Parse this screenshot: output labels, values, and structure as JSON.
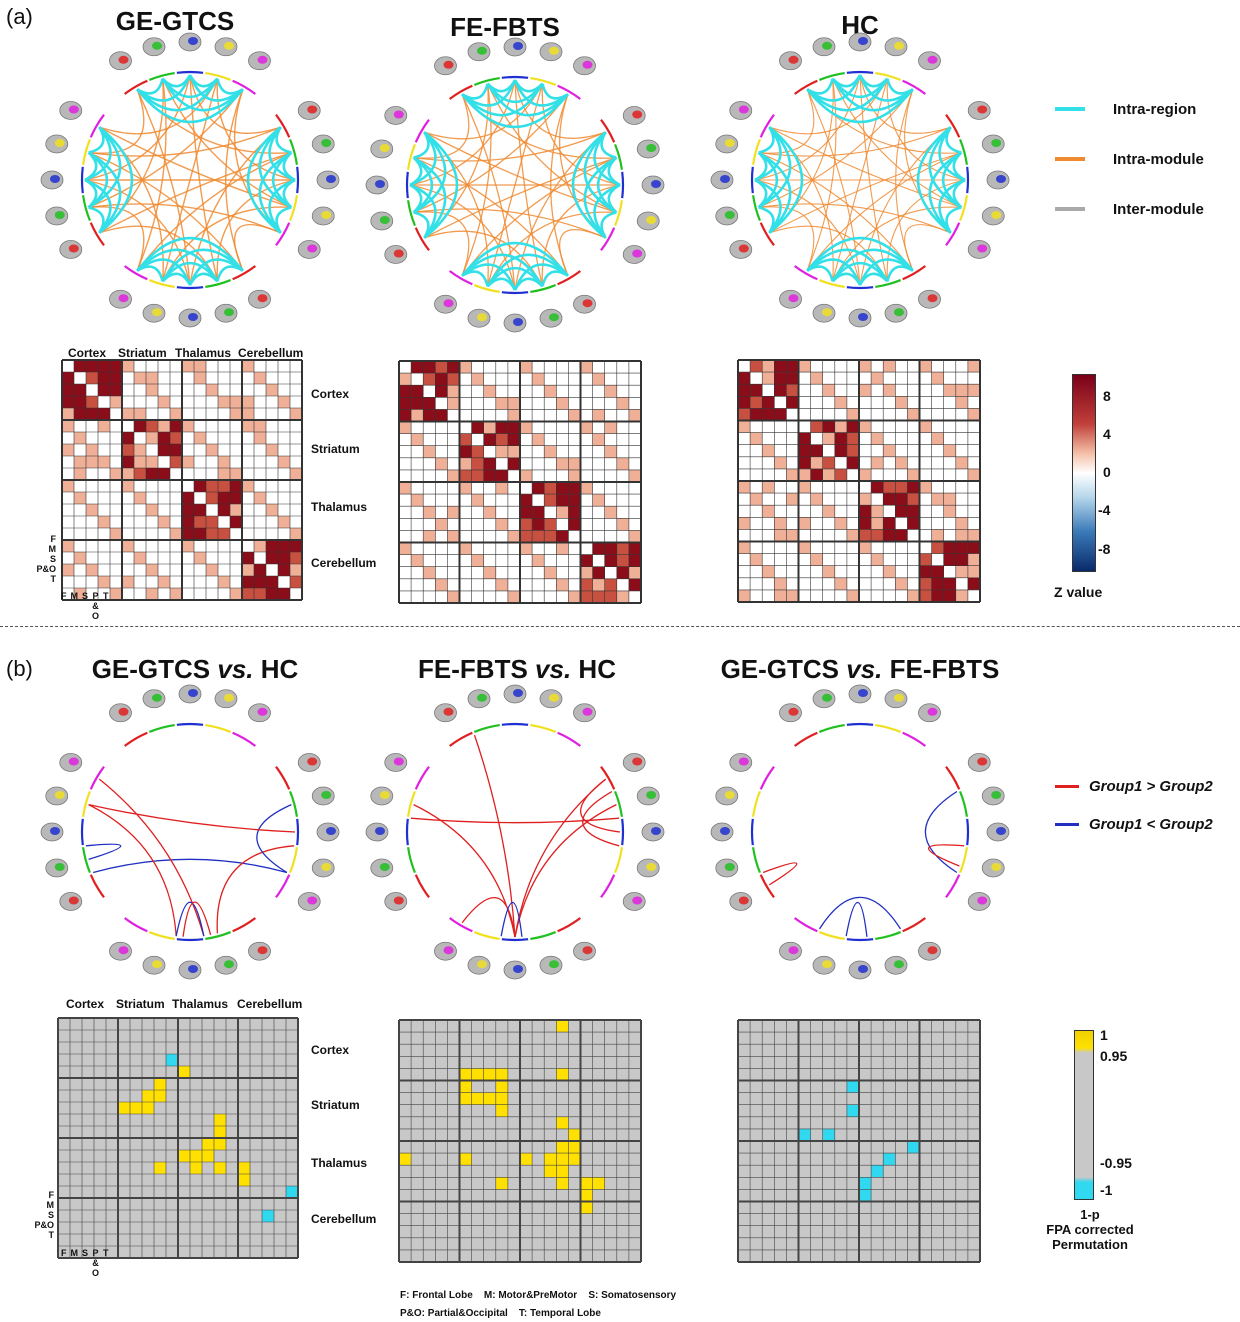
{
  "panel_a": {
    "label": "(a)",
    "titles": [
      "GE-GTCS",
      "FE-FBTS",
      "HC"
    ],
    "legend": [
      {
        "label": "Intra-region",
        "color": "#33e0e8"
      },
      {
        "label": "Intra-module",
        "color": "#f08a30"
      },
      {
        "label": "Inter-module",
        "color": "#aaaaaa"
      }
    ],
    "matrix_col_labels": [
      "Cortex",
      "Striatum",
      "Thalamus",
      "Cerebellum"
    ],
    "matrix_row_labels": [
      "Cortex",
      "Striatum",
      "Thalamus",
      "Cerebellum"
    ],
    "colorbar": {
      "ticks": [
        "8",
        "4",
        "0",
        "-4",
        "-8"
      ],
      "label": "Z value"
    }
  },
  "panel_b": {
    "label": "(b)",
    "titles": [
      {
        "a": "GE-GTCS ",
        "vs": "vs.",
        "b": " HC"
      },
      {
        "a": "FE-FBTS ",
        "vs": "vs.",
        "b": " HC"
      },
      {
        "a": "GE-GTCS ",
        "vs": "vs.",
        "b": " FE-FBTS"
      }
    ],
    "legend": [
      {
        "label": "Group1 > Group2",
        "color": "#e02020"
      },
      {
        "label": "Group1 < Group2",
        "color": "#2030c0"
      }
    ],
    "matrix_col_labels": [
      "Cortex",
      "Striatum",
      "Thalamus",
      "Cerebellum"
    ],
    "matrix_row_labels": [
      "Cortex",
      "Striatum",
      "Thalamus",
      "Cerebellum"
    ],
    "colorbar": {
      "ticks": [
        "1",
        "0.95",
        "-0.95",
        "-1"
      ],
      "label_lines": [
        "1-p",
        "FPA corrected",
        "Permutation"
      ]
    }
  },
  "sub_row_labels": [
    "F",
    "M",
    "S",
    "P&O",
    "T"
  ],
  "sub_col_labels": [
    "F",
    "M",
    "S",
    "P",
    "T"
  ],
  "sub_col_po": [
    "&",
    "O"
  ],
  "footer": {
    "line1": "F: Frontal Lobe    M: Motor&PreMotor    S: Somatosensory",
    "line2": "P&O: Partial&Occipital    T: Temporal Lobe"
  },
  "colors": {
    "module_arcs": [
      "#e02020",
      "#20c020",
      "#2030d0",
      "#f0e020",
      "#e020e0"
    ],
    "heat_dark": "#8b0d1a",
    "heat_mid": "#c85040",
    "heat_light": "#f0b098",
    "sig_pos": "#ffe000",
    "sig_neg": "#30d8f0",
    "sig_bg": "#c8c8c8"
  }
}
